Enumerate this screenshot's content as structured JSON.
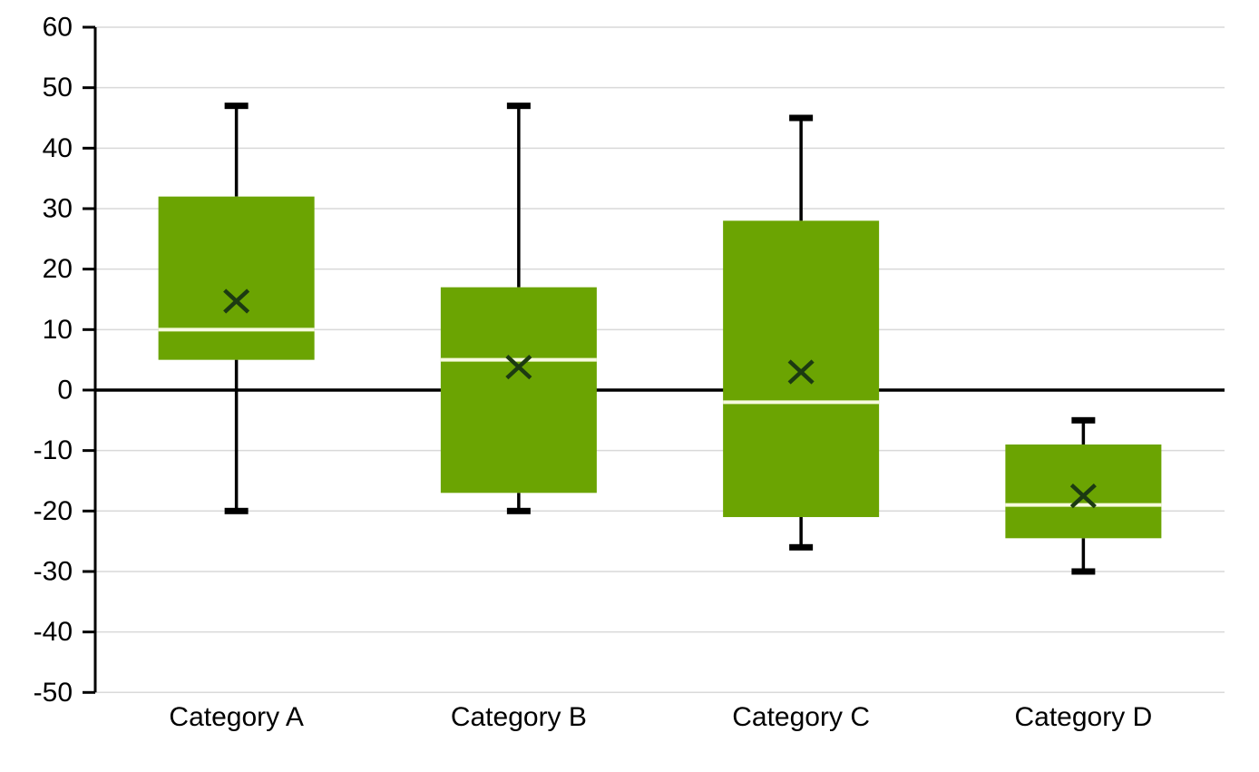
{
  "chart_data": {
    "type": "boxplot",
    "title": "",
    "categories": [
      "Category A",
      "Category B",
      "Category C",
      "Category D"
    ],
    "series": [
      {
        "name": "Category A",
        "whisker_low": -20,
        "q1": 5,
        "median": 10,
        "mean": 14.7,
        "q3": 32,
        "whisker_high": 47
      },
      {
        "name": "Category B",
        "whisker_low": -20,
        "q1": -17,
        "median": 5,
        "mean": 3.8,
        "q3": 17,
        "whisker_high": 47
      },
      {
        "name": "Category C",
        "whisker_low": -26,
        "q1": -21,
        "median": -2,
        "mean": 3,
        "q3": 28,
        "whisker_high": 45
      },
      {
        "name": "Category D",
        "whisker_low": -30,
        "q1": -24.5,
        "median": -19,
        "mean": -17.5,
        "q3": -9,
        "whisker_high": -5
      }
    ],
    "ylim": [
      -50,
      60
    ],
    "ytick_step": 10,
    "y_tick_labels": [
      "60",
      "50",
      "40",
      "30",
      "20",
      "10",
      "0",
      "-10",
      "-20",
      "-30",
      "-40",
      "-50"
    ],
    "xlabel": "",
    "ylabel": "",
    "grid": true,
    "legend": "none",
    "colors": {
      "box_fill": "#6BA402",
      "median_line": "#F7FADF",
      "mean_marker": "#1C3A12",
      "whisker": "#000000",
      "gridline": "#D9D9D9",
      "axis": "#000000",
      "tick_label": "#000000",
      "category_label": "#000000",
      "background": "#FFFFFF"
    }
  }
}
